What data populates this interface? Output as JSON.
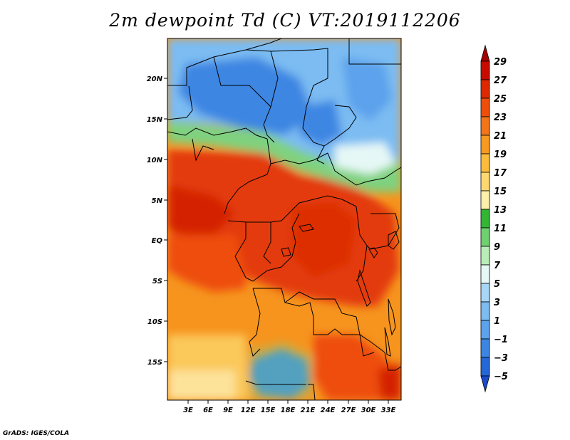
{
  "title": "2m dewpoint Td (C) VT:2019112206",
  "footer": "GrADS: IGES/COLA",
  "map": {
    "lat_labels": [
      "20N",
      "15N",
      "10N",
      "5N",
      "EQ",
      "5S",
      "10S",
      "15S"
    ],
    "lon_labels": [
      "3E",
      "6E",
      "9E",
      "12E",
      "15E",
      "18E",
      "21E",
      "24E",
      "27E",
      "30E",
      "33E"
    ]
  },
  "colorbar": {
    "levels": [
      "29",
      "27",
      "25",
      "23",
      "21",
      "19",
      "17",
      "15",
      "13",
      "11",
      "9",
      "7",
      "5",
      "3",
      "1",
      "-1",
      "-3",
      "-5"
    ],
    "colors": [
      "#a50000",
      "#c80a00",
      "#dd2800",
      "#ee4e0a",
      "#f4741a",
      "#f89a22",
      "#fbbc3c",
      "#fdd870",
      "#fdf0a8",
      "#33b733",
      "#6fd06f",
      "#b8ecb8",
      "#e6f8f6",
      "#a8d6f6",
      "#7cbcf2",
      "#5ca2ec",
      "#3c86e2",
      "#2468d8",
      "#1a4cc8"
    ]
  }
}
